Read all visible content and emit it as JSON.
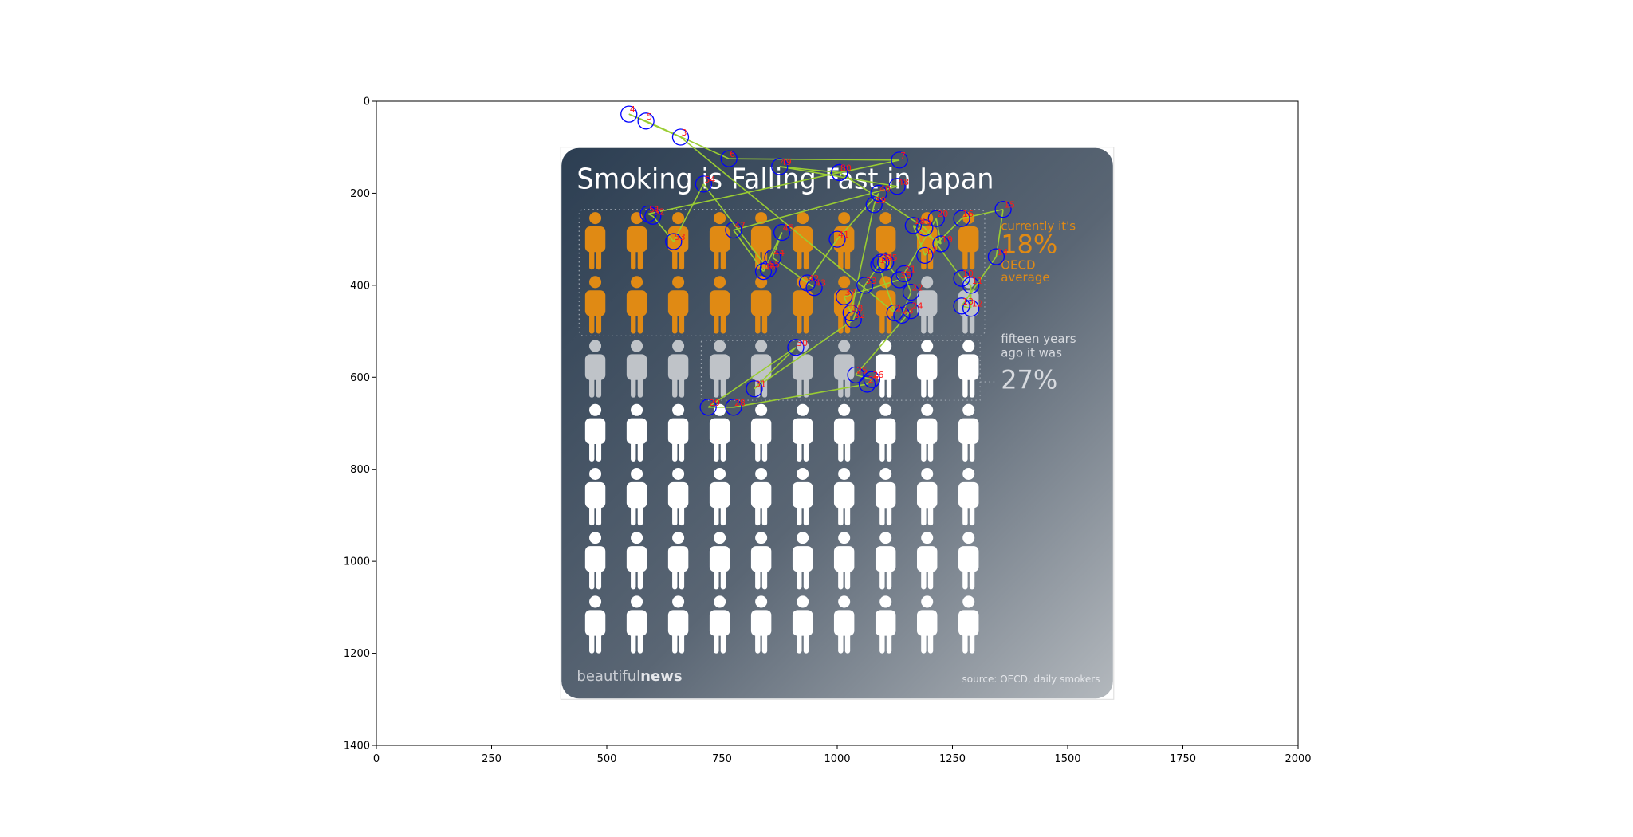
{
  "chart_data": {
    "type": "scatter",
    "axes": {
      "xlim": [
        0,
        2000
      ],
      "ylim": [
        1400,
        0
      ],
      "xticks": [
        0,
        250,
        500,
        750,
        1000,
        1250,
        1500,
        1750,
        2000
      ],
      "yticks": [
        0,
        200,
        400,
        600,
        800,
        1000,
        1200,
        1400
      ],
      "xtick_labels": [
        "0",
        "250",
        "500",
        "750",
        "1000",
        "1250",
        "1500",
        "1750",
        "2000"
      ],
      "ytick_labels": [
        "0",
        "200",
        "400",
        "600",
        "800",
        "1000",
        "1200",
        "1400"
      ],
      "grid": false
    },
    "background_image": {
      "extent": {
        "x": [
          400,
          1600
        ],
        "y": [
          100,
          1300
        ]
      },
      "title": "Smoking is Falling Fast in Japan",
      "current_label": "currently it's",
      "current_value": "18%",
      "oecd_line1": "OECD",
      "oecd_line2": "average",
      "past_line1": "fifteen years",
      "past_line2": "ago it was",
      "past_value": "27%",
      "brand_light": "beautiful",
      "brand_bold": "news",
      "source": "source: OECD, daily smokers",
      "pictogram_grid": {
        "rows": 7,
        "cols": 10,
        "orange_count": 18,
        "grey_count": 9,
        "white_count": 43
      },
      "colors": {
        "orange": "#e08a14",
        "grey": "#bfc3c8",
        "white": "#ffffff",
        "bg_dark": "#2c3e52",
        "bg_light": "#b3b8bd"
      }
    },
    "scanpath": {
      "line_color": "#9acd32",
      "circle_color": "#0000ff",
      "label_color": "#ff0000",
      "points": [
        {
          "label": "1",
          "x": 1090,
          "y": 355
        },
        {
          "label": "2",
          "x": 1125,
          "y": 460
        },
        {
          "label": "3",
          "x": 660,
          "y": 78
        },
        {
          "label": "4",
          "x": 548,
          "y": 28
        },
        {
          "label": "5",
          "x": 585,
          "y": 43
        },
        {
          "label": "6",
          "x": 765,
          "y": 125
        },
        {
          "label": "7",
          "x": 1135,
          "y": 128
        },
        {
          "label": "8",
          "x": 1005,
          "y": 155
        },
        {
          "label": "9",
          "x": 1190,
          "y": 275
        },
        {
          "label": "10",
          "x": 1270,
          "y": 385
        },
        {
          "label": "11",
          "x": 1290,
          "y": 400
        },
        {
          "label": "12",
          "x": 1290,
          "y": 450
        },
        {
          "label": "13",
          "x": 1270,
          "y": 445
        },
        {
          "label": "14",
          "x": 1345,
          "y": 338
        },
        {
          "label": "15",
          "x": 1360,
          "y": 235
        },
        {
          "label": "16",
          "x": 1270,
          "y": 255
        },
        {
          "label": "17",
          "x": 1190,
          "y": 335
        },
        {
          "label": "18",
          "x": 1165,
          "y": 270
        },
        {
          "label": "19",
          "x": 1225,
          "y": 310
        },
        {
          "label": "20",
          "x": 1215,
          "y": 255
        },
        {
          "label": "21",
          "x": 1145,
          "y": 375
        },
        {
          "label": "22",
          "x": 1160,
          "y": 415
        },
        {
          "label": "23",
          "x": 1140,
          "y": 465
        },
        {
          "label": "24",
          "x": 1160,
          "y": 455
        },
        {
          "label": "25",
          "x": 1040,
          "y": 595
        },
        {
          "label": "26",
          "x": 1075,
          "y": 605
        },
        {
          "label": "27",
          "x": 1065,
          "y": 615
        },
        {
          "label": "28",
          "x": 775,
          "y": 665
        },
        {
          "label": "29",
          "x": 720,
          "y": 665
        },
        {
          "label": "30",
          "x": 910,
          "y": 535
        },
        {
          "label": "31",
          "x": 820,
          "y": 625
        },
        {
          "label": "32",
          "x": 1035,
          "y": 475
        },
        {
          "label": "33",
          "x": 1060,
          "y": 400
        },
        {
          "label": "34",
          "x": 1095,
          "y": 350
        },
        {
          "label": "35",
          "x": 1105,
          "y": 350
        },
        {
          "label": "36",
          "x": 1135,
          "y": 388
        },
        {
          "label": "37",
          "x": 1015,
          "y": 425
        },
        {
          "label": "38",
          "x": 1030,
          "y": 460
        },
        {
          "label": "39",
          "x": 1080,
          "y": 225
        },
        {
          "label": "40",
          "x": 1090,
          "y": 200
        },
        {
          "label": "41",
          "x": 1000,
          "y": 300
        },
        {
          "label": "42",
          "x": 935,
          "y": 395
        },
        {
          "label": "43",
          "x": 950,
          "y": 405
        },
        {
          "label": "44",
          "x": 860,
          "y": 340
        },
        {
          "label": "45",
          "x": 880,
          "y": 285
        },
        {
          "label": "46",
          "x": 840,
          "y": 370
        },
        {
          "label": "47",
          "x": 775,
          "y": 280
        },
        {
          "label": "48",
          "x": 1130,
          "y": 185
        },
        {
          "label": "49",
          "x": 875,
          "y": 142
        },
        {
          "label": "50",
          "x": 1005,
          "y": 155
        },
        {
          "label": "51",
          "x": 590,
          "y": 245
        },
        {
          "label": "52",
          "x": 600,
          "y": 250
        },
        {
          "label": "53",
          "x": 645,
          "y": 305
        },
        {
          "label": "54",
          "x": 710,
          "y": 180
        },
        {
          "label": "55",
          "x": 850,
          "y": 365
        }
      ]
    }
  }
}
